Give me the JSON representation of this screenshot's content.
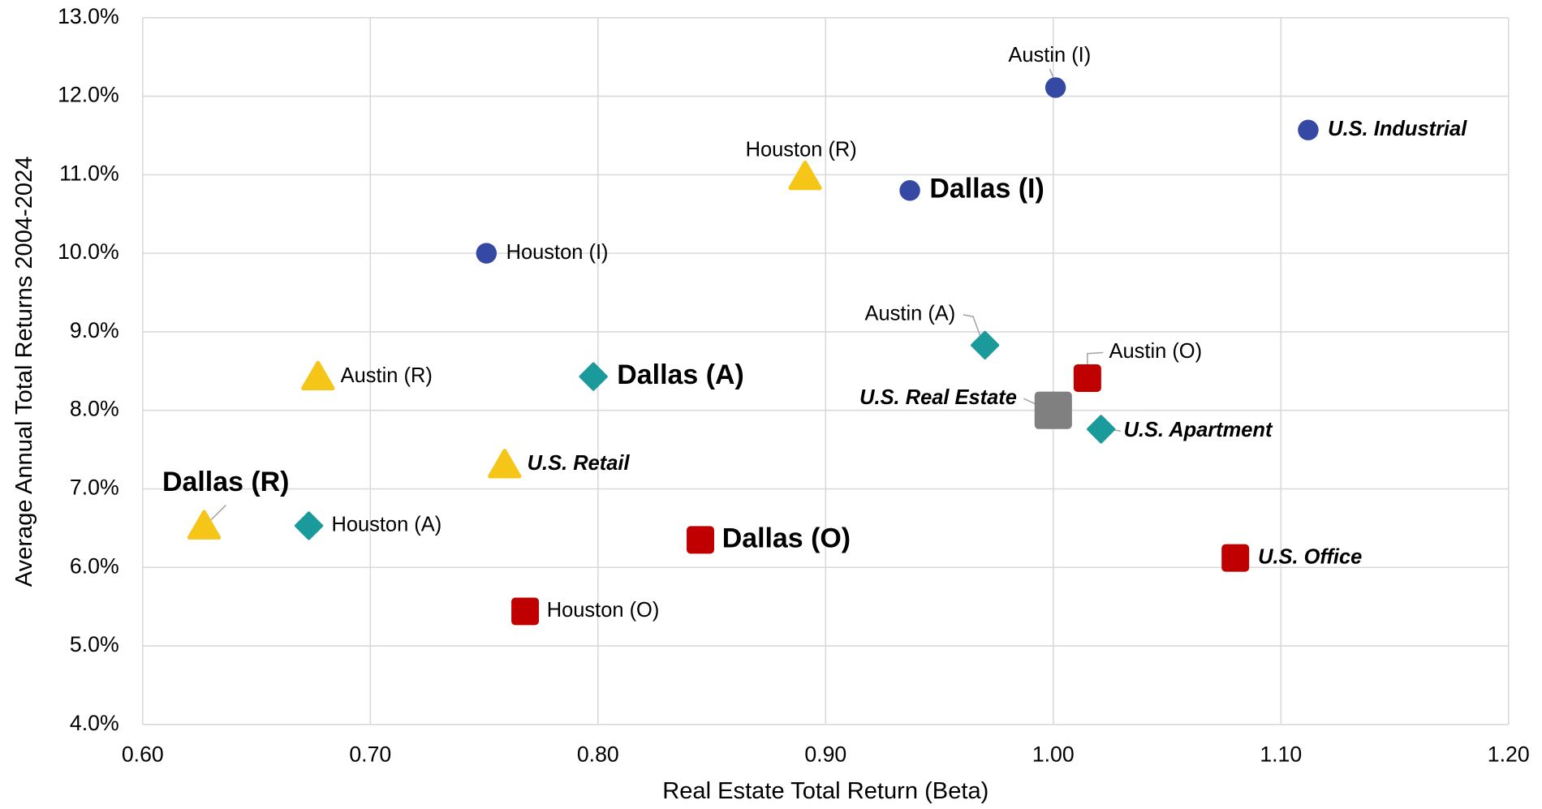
{
  "chart_data": {
    "type": "scatter",
    "x_label": "Real Estate Total Return (Beta)",
    "y_label": "Average Annual Total Returns 2004-2024",
    "xlim": [
      0.6,
      1.2
    ],
    "ylim": [
      4,
      13
    ],
    "xticks": [
      {
        "value": 0.6,
        "label": "0.60"
      },
      {
        "value": 0.7,
        "label": "0.70"
      },
      {
        "value": 0.8,
        "label": "0.80"
      },
      {
        "value": 0.9,
        "label": "0.90"
      },
      {
        "value": 1.0,
        "label": "1.00"
      },
      {
        "value": 1.1,
        "label": "1.10"
      },
      {
        "value": 1.2,
        "label": "1.20"
      }
    ],
    "yticks": [
      {
        "value": 4,
        "label": "4.0%"
      },
      {
        "value": 5,
        "label": "5.0%"
      },
      {
        "value": 6,
        "label": "6.0%"
      },
      {
        "value": 7,
        "label": "7.0%"
      },
      {
        "value": 8,
        "label": "8.0%"
      },
      {
        "value": 9,
        "label": "9.0%"
      },
      {
        "value": 10,
        "label": "10.0%"
      },
      {
        "value": 11,
        "label": "11.0%"
      },
      {
        "value": 12,
        "label": "12.0%"
      },
      {
        "value": 13,
        "label": "13.0%"
      }
    ],
    "grid": true,
    "series": [
      {
        "color": "#3448a4",
        "label_color": "#000000",
        "marker": "circle",
        "labels": [
          "Austin (I)",
          "U.S. Industrial",
          "Dallas (I)",
          "Houston (I)"
        ],
        "label_styles": [
          "normal",
          "bold-italic",
          "bold",
          "normal"
        ],
        "x": [
          1.001,
          1.112,
          0.937,
          0.751
        ],
        "values": [
          12.11,
          11.57,
          10.8,
          10.0
        ]
      },
      {
        "color": "#f5c518",
        "label_color": "#f5c518",
        "marker": "triangle",
        "labels": [
          "Houston (R)",
          "Austin (R)",
          "U.S. Retail",
          "Dallas (R)"
        ],
        "label_styles": [
          "normal",
          "normal",
          "bold-italic",
          "bold"
        ],
        "x": [
          0.891,
          0.677,
          0.759,
          0.627
        ],
        "values": [
          10.98,
          8.43,
          7.31,
          6.53
        ]
      },
      {
        "color": "#1a9a9a",
        "label_color": "#1a9a9a",
        "marker": "diamond",
        "labels": [
          "Austin (A)",
          "Dallas (A)",
          "U.S. Apartment",
          "Houston (A)"
        ],
        "label_styles": [
          "normal",
          "bold",
          "bold-italic",
          "normal"
        ],
        "x": [
          0.97,
          0.798,
          1.021,
          0.673
        ],
        "values": [
          8.83,
          8.43,
          7.76,
          6.53
        ]
      },
      {
        "color": "#c00000",
        "label_color": "#c00000",
        "marker": "square",
        "labels": [
          "Austin (O)",
          "Dallas (O)",
          "U.S. Office",
          "Houston (O)"
        ],
        "label_styles": [
          "normal",
          "bold",
          "bold-italic",
          "normal"
        ],
        "x": [
          1.015,
          0.845,
          1.08,
          0.768
        ],
        "values": [
          8.41,
          6.35,
          6.12,
          5.44
        ]
      },
      {
        "color": "#808080",
        "label_color": "#000000",
        "marker": "big-square",
        "labels": [
          "U.S. Real Estate"
        ],
        "label_styles": [
          "bold-italic"
        ],
        "x": [
          1.0
        ],
        "values": [
          8.0
        ]
      }
    ]
  }
}
